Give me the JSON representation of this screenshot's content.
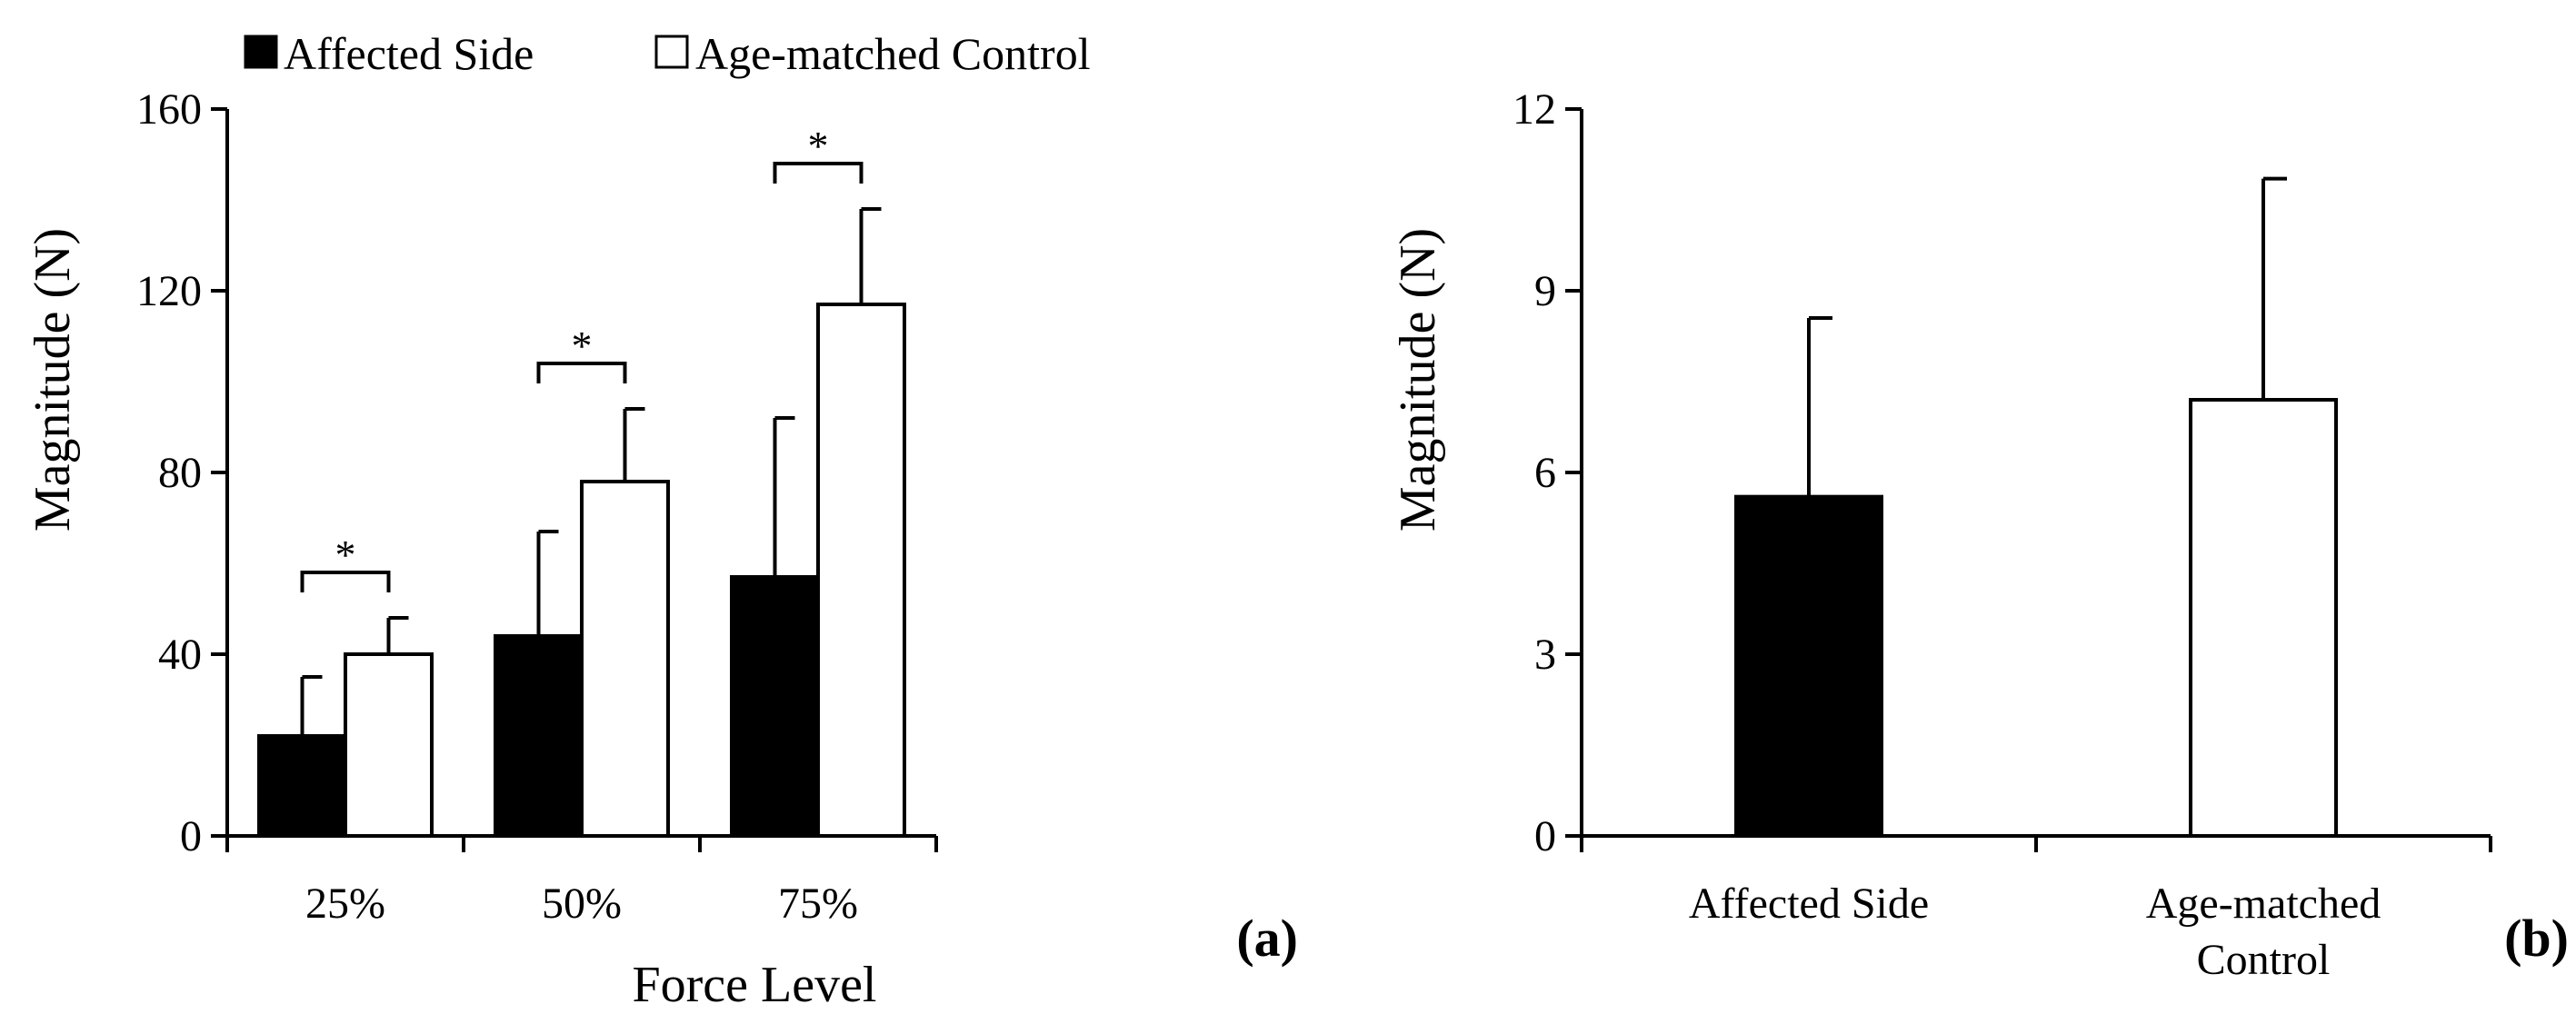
{
  "legend": [
    {
      "label": "Affected Side",
      "color": "#000000"
    },
    {
      "label": "Age-matched Control",
      "color": "#ffffff"
    }
  ],
  "chart_data": [
    {
      "type": "bar",
      "panel_label": "(a)",
      "xlabel": "Force Level",
      "ylabel": "Magnitude (N)",
      "ylim": [
        0,
        160
      ],
      "yticks": [
        0,
        40,
        80,
        120,
        160
      ],
      "categories": [
        "25%",
        "50%",
        "75%"
      ],
      "series": [
        {
          "name": "Affected Side",
          "color": "#000000",
          "values": [
            22,
            44,
            57
          ],
          "errors": [
            13,
            23,
            35
          ]
        },
        {
          "name": "Age-matched Control",
          "color": "#ffffff",
          "values": [
            40,
            78,
            117
          ],
          "errors": [
            8,
            16,
            21
          ]
        }
      ],
      "significance": [
        {
          "category": "25%",
          "marker": "*"
        },
        {
          "category": "50%",
          "marker": "*"
        },
        {
          "category": "75%",
          "marker": "*"
        }
      ]
    },
    {
      "type": "bar",
      "panel_label": "(b)",
      "xlabel": "",
      "ylabel": "Magnitude (N)",
      "ylim": [
        0,
        12
      ],
      "yticks": [
        0,
        3,
        6,
        9,
        12
      ],
      "categories": [
        [
          "Affected Side"
        ],
        [
          "Age-matched",
          "Control"
        ]
      ],
      "values": [
        5.6,
        7.2
      ],
      "errors": [
        2.95,
        3.65
      ],
      "colors": [
        "#000000",
        "#ffffff"
      ]
    }
  ]
}
